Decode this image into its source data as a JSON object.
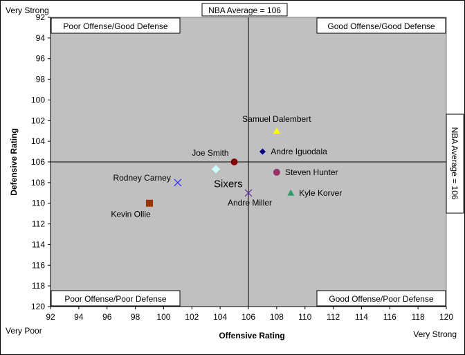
{
  "chart_data": {
    "type": "scatter",
    "xlabel": "Offensive Rating",
    "ylabel": "Defensive Rating",
    "xlim": [
      92,
      120
    ],
    "ylim": [
      92,
      120
    ],
    "y_inverted": true,
    "x_ticks": [
      92,
      94,
      96,
      98,
      100,
      102,
      104,
      106,
      108,
      110,
      112,
      114,
      116,
      118,
      120
    ],
    "y_ticks": [
      92,
      94,
      96,
      98,
      100,
      102,
      104,
      106,
      108,
      110,
      112,
      114,
      116,
      118,
      120
    ],
    "grid": false,
    "plot_background": "#c0c0c0",
    "reference_lines": {
      "x": 106,
      "y": 106
    },
    "reference_labels": {
      "top": "NBA Average = 106",
      "right": "NBA Average = 106"
    },
    "corner_labels": {
      "top_left": "Very Strong",
      "bottom_left": "Very Poor",
      "bottom_right": "Very Strong"
    },
    "quadrant_labels": {
      "top_left": "Poor Offense/Good Defense",
      "top_right": "Good Offense/Good Defense",
      "bottom_left": "Poor Offense/Poor Defense",
      "bottom_right": "Good Offense/Poor Defense"
    },
    "points": [
      {
        "name": "Samuel Dalembert",
        "x": 108,
        "y": 103,
        "marker": "triangle",
        "color": "#ffff00",
        "label_pos": "above"
      },
      {
        "name": "Andre Iguodala",
        "x": 107,
        "y": 105,
        "marker": "diamond",
        "color": "#000080",
        "label_pos": "right"
      },
      {
        "name": "Joe Smith",
        "x": 105,
        "y": 106,
        "marker": "circle",
        "color": "#800000",
        "label_pos": "left-above"
      },
      {
        "name": "Steven Hunter",
        "x": 108,
        "y": 107,
        "marker": "circle",
        "color": "#993366",
        "label_pos": "right"
      },
      {
        "name": "Sixers",
        "x": 103.7,
        "y": 106.7,
        "marker": "diamond",
        "color": "#ccffff",
        "label_pos": "below-right",
        "big": true
      },
      {
        "name": "Rodney Carney",
        "x": 101,
        "y": 108,
        "marker": "x",
        "color": "#3333ff",
        "label_pos": "left"
      },
      {
        "name": "Andre Miller",
        "x": 106,
        "y": 109,
        "marker": "x",
        "color": "#663399",
        "label_pos": "below"
      },
      {
        "name": "Kyle Korver",
        "x": 109,
        "y": 109,
        "marker": "triangle",
        "color": "#339966",
        "label_pos": "right"
      },
      {
        "name": "Kevin Ollie",
        "x": 99,
        "y": 110,
        "marker": "square",
        "color": "#993300",
        "label_pos": "below-left"
      }
    ]
  }
}
